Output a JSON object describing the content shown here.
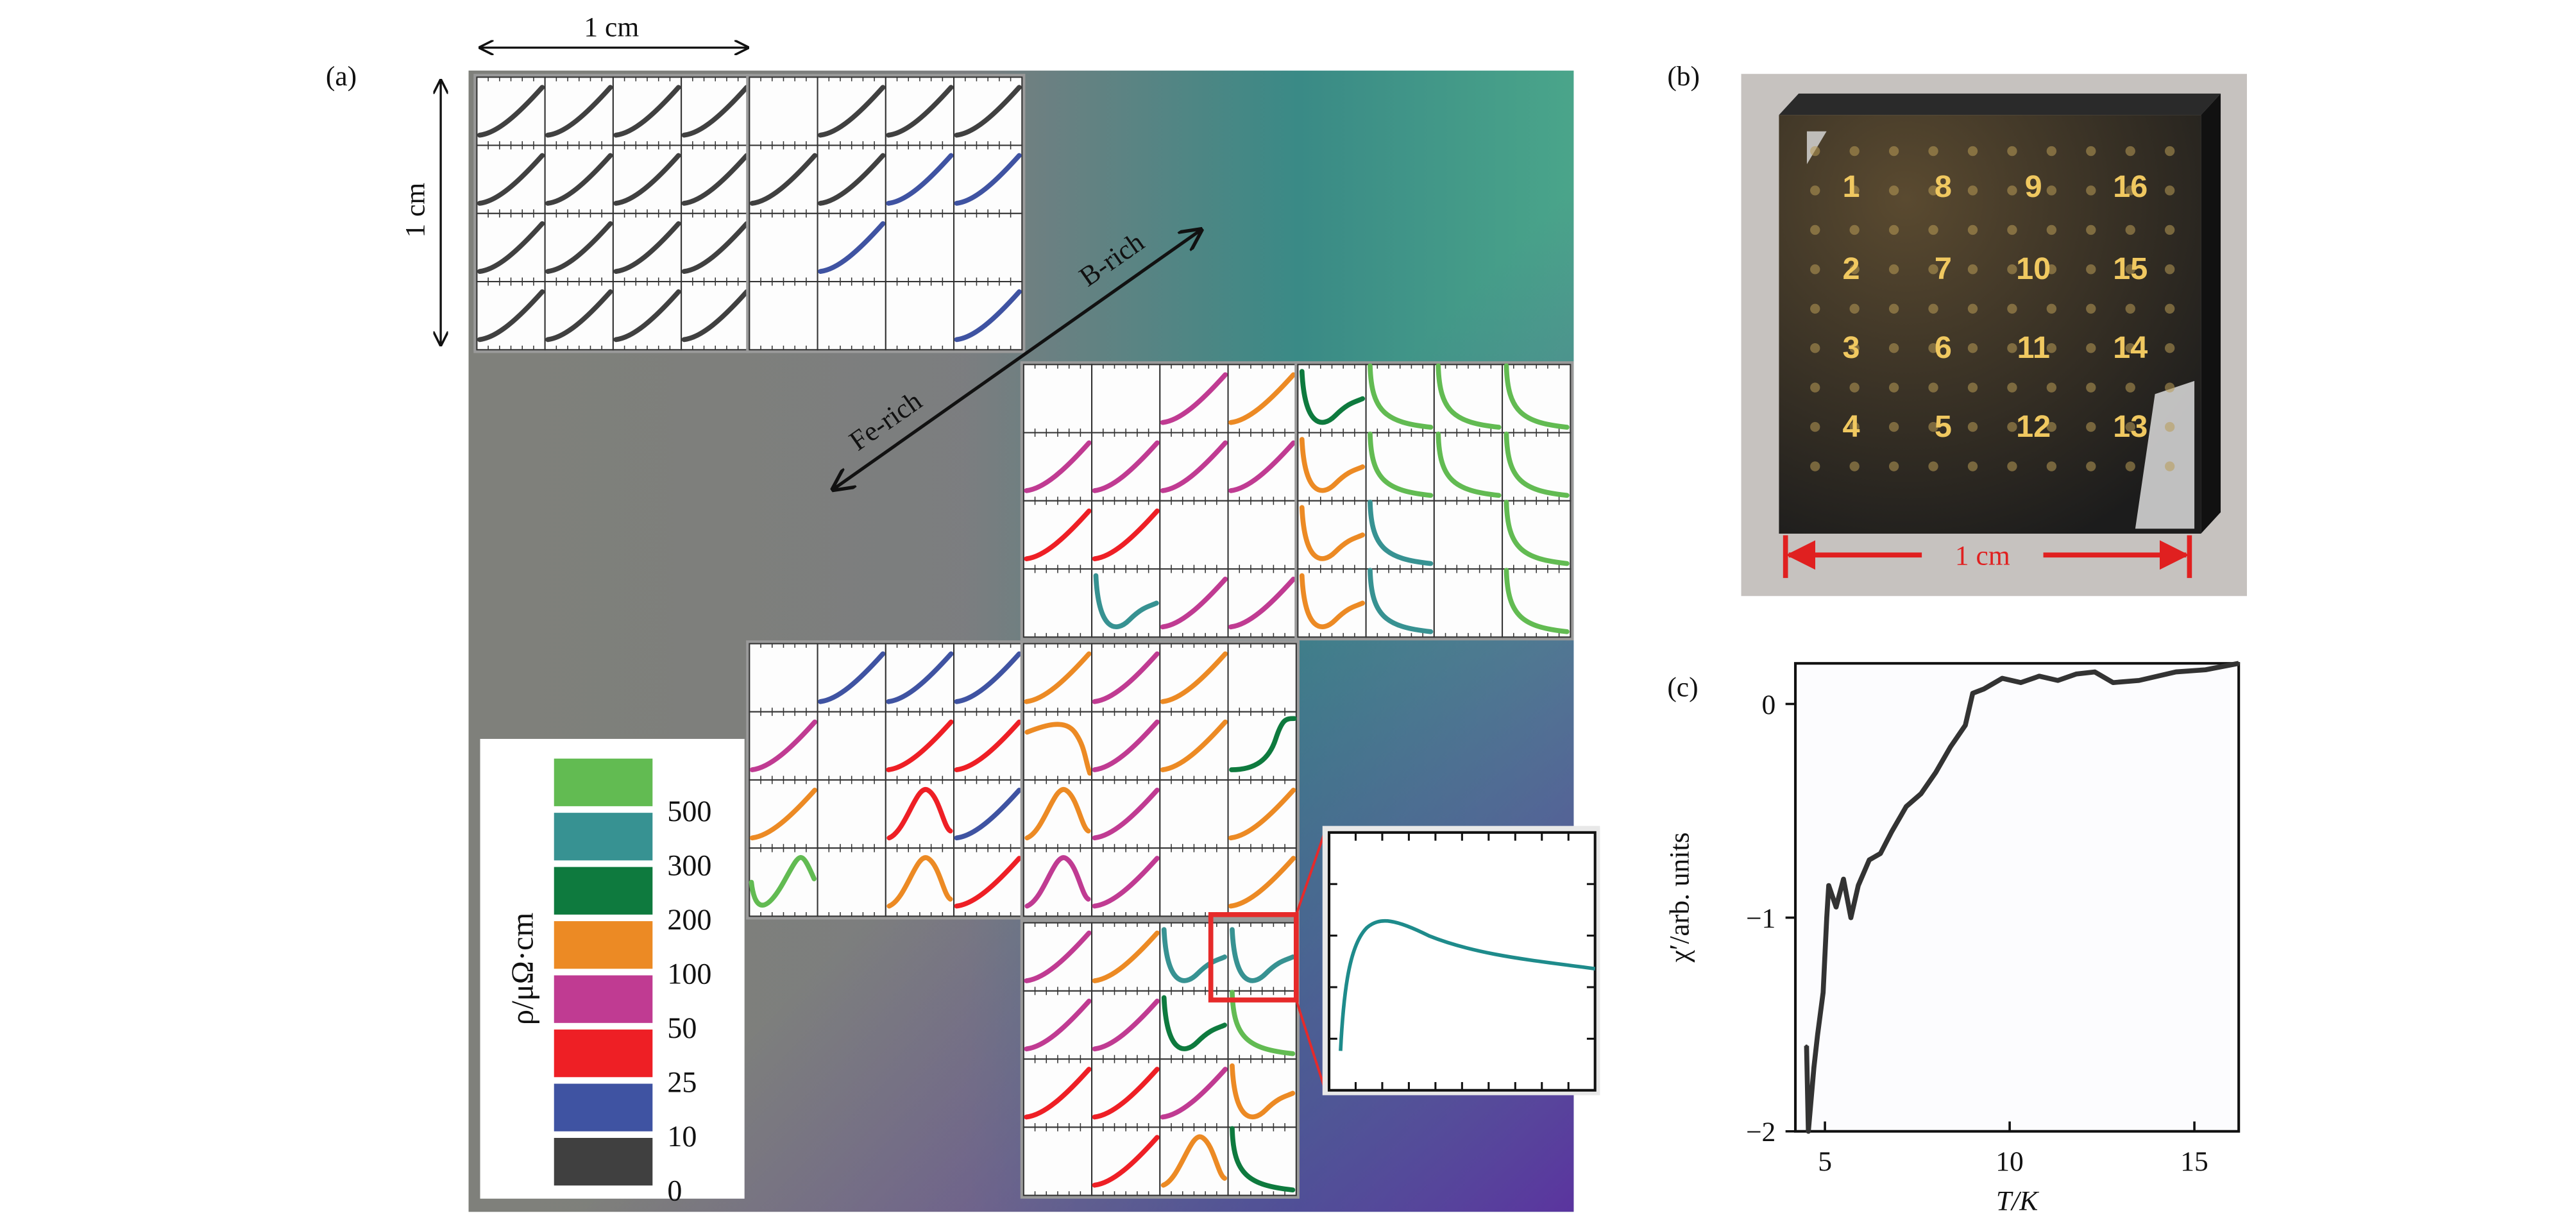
{
  "panel_a": {
    "label": "(a)",
    "scale_x_label": "1 cm",
    "scale_y_label": "1 cm",
    "direction_b": "B-rich",
    "direction_fe": "Fe-rich",
    "legend": {
      "title": "ρ/μΩ·cm",
      "entries": [
        {
          "value": "500",
          "color": "#62bb52",
          "key": "g"
        },
        {
          "value": "300",
          "color": "#379292",
          "key": "t"
        },
        {
          "value": "200",
          "color": "#0e7a3e",
          "key": "d"
        },
        {
          "value": "100",
          "color": "#ec8a24",
          "key": "o"
        },
        {
          "value": "50",
          "color": "#c03b92",
          "key": "m"
        },
        {
          "value": "25",
          "color": "#ee1f25",
          "key": "r"
        },
        {
          "value": "10",
          "color": "#3f53a2",
          "key": "b"
        },
        {
          "value": "0",
          "color": "#404040",
          "key": "k"
        }
      ]
    },
    "blocks": [
      {
        "name": "A",
        "cells": [
          [
            "k:rise",
            "k:rise",
            "k:rise",
            "k:rise"
          ],
          [
            "k:rise",
            "k:rise",
            "k:rise",
            "k:rise"
          ],
          [
            "k:rise",
            "k:rise",
            "k:rise",
            "k:rise"
          ],
          [
            "k:rise",
            "k:rise",
            "k:rise",
            "k:rise"
          ]
        ]
      },
      {
        "name": "B",
        "cells": [
          [
            "",
            "k:rise",
            "k:rise",
            "k:rise"
          ],
          [
            "k:rise",
            "k:rise",
            "b:rise",
            "b:rise"
          ],
          [
            "",
            "b:rise",
            "",
            ""
          ],
          [
            "",
            "",
            "",
            "b:rise"
          ]
        ]
      },
      {
        "name": "C",
        "cells": [
          [
            "",
            "",
            "m:rise",
            "o:rise"
          ],
          [
            "m:rise",
            "m:rise",
            "m:rise",
            "m:rise"
          ],
          [
            "r:rise",
            "r:rise",
            "",
            ""
          ],
          [
            "",
            "t:u",
            "m:rise",
            "m:rise"
          ]
        ]
      },
      {
        "name": "D",
        "cells": [
          [
            "d:u",
            "g:decay",
            "g:decay",
            "g:decay"
          ],
          [
            "o:u",
            "g:decay",
            "g:decay",
            "g:decay"
          ],
          [
            "o:u",
            "t:decay",
            "",
            "g:decay"
          ],
          [
            "o:u",
            "t:decay",
            "",
            "g:decay"
          ]
        ]
      },
      {
        "name": "E",
        "cells": [
          [
            "",
            "b:rise",
            "b:rise",
            "b:rise"
          ],
          [
            "m:rise",
            "",
            "r:rise",
            "r:rise"
          ],
          [
            "o:rise",
            "",
            "r:peak",
            "b:rise"
          ],
          [
            "g:wave",
            "",
            "o:peak",
            "r:rise"
          ]
        ]
      },
      {
        "name": "F",
        "cells": [
          [
            "o:rise",
            "m:rise",
            "o:rise",
            ""
          ],
          [
            "o:drop",
            "m:rise",
            "o:rise",
            "d:step"
          ],
          [
            "o:peak",
            "m:rise",
            "",
            "o:rise"
          ],
          [
            "m:peak",
            "m:rise",
            "",
            "o:rise"
          ]
        ]
      },
      {
        "name": "G",
        "cells": [
          [
            "m:rise",
            "o:rise",
            "t:u",
            "t:u"
          ],
          [
            "m:rise",
            "m:rise",
            "d:u",
            "g:decay"
          ],
          [
            "r:rise",
            "r:rise",
            "m:rise",
            "o:u"
          ],
          [
            "",
            "r:rise",
            "o:peak",
            "d:decay"
          ]
        ]
      }
    ],
    "highlight_color": "#e62a2a",
    "inset_curve_color": "#1e8b8b"
  },
  "panel_b": {
    "label": "(b)",
    "sample_numbers": [
      [
        "1",
        "8",
        "9",
        "16"
      ],
      [
        "2",
        "7",
        "10",
        "15"
      ],
      [
        "3",
        "6",
        "11",
        "14"
      ],
      [
        "4",
        "5",
        "12",
        "13"
      ]
    ],
    "scale_label": "1 cm",
    "number_color": "#f0c860",
    "scale_color": "#e02020"
  },
  "panel_c": {
    "label": "(c)"
  },
  "chart_data": {
    "type": "line",
    "title": "",
    "xlabel": "T/K",
    "ylabel": "χ′/arb. units",
    "xlim": [
      4.2,
      16.2
    ],
    "ylim": [
      -2,
      0.19
    ],
    "xticks": [
      5,
      10,
      15
    ],
    "yticks": [
      0,
      -1,
      -2
    ],
    "xtick_labels": [
      "5",
      "10",
      "15"
    ],
    "ytick_labels": [
      "0",
      "−1",
      "−2"
    ],
    "grid": false,
    "series": [
      {
        "name": "χ′",
        "color": "#333333",
        "x": [
          4.5,
          4.55,
          4.7,
          4.8,
          4.95,
          5.05,
          5.1,
          5.3,
          5.5,
          5.7,
          5.9,
          6.2,
          6.5,
          6.8,
          7.2,
          7.6,
          8.0,
          8.4,
          8.8,
          9.0,
          9.3,
          9.8,
          10.3,
          10.8,
          11.3,
          11.8,
          12.3,
          12.8,
          13.5,
          14.5,
          15.3,
          16.2
        ],
        "y": [
          -1.6,
          -2.0,
          -1.7,
          -1.55,
          -1.35,
          -1.0,
          -0.85,
          -0.95,
          -0.82,
          -1.0,
          -0.85,
          -0.73,
          -0.7,
          -0.6,
          -0.48,
          -0.42,
          -0.32,
          -0.2,
          -0.1,
          0.05,
          0.07,
          0.12,
          0.1,
          0.13,
          0.11,
          0.14,
          0.15,
          0.1,
          0.11,
          0.15,
          0.16,
          0.19
        ]
      }
    ]
  }
}
